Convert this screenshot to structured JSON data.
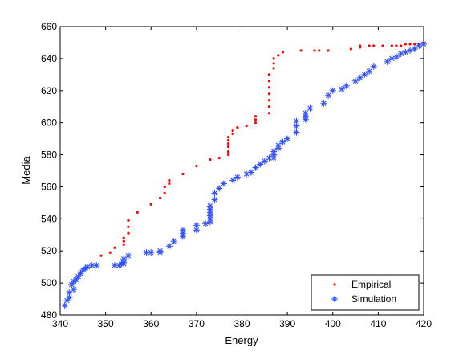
{
  "chart_data": {
    "type": "scatter",
    "xlabel": "Energy",
    "ylabel": "Media",
    "xlim": [
      340,
      420
    ],
    "ylim": [
      480,
      660
    ],
    "xticks": [
      340,
      350,
      360,
      370,
      380,
      390,
      400,
      410,
      420
    ],
    "yticks": [
      480,
      500,
      520,
      540,
      560,
      580,
      600,
      620,
      640,
      660
    ],
    "grid": false,
    "legend_position": "bottom-right",
    "series": [
      {
        "name": "Empirical",
        "color": "#ff0000",
        "marker": "dot",
        "points": [
          [
            349,
            517
          ],
          [
            351,
            519
          ],
          [
            352,
            522
          ],
          [
            354,
            524
          ],
          [
            354,
            526
          ],
          [
            354,
            528
          ],
          [
            355,
            531
          ],
          [
            355,
            535
          ],
          [
            355,
            539
          ],
          [
            357,
            544
          ],
          [
            360,
            549
          ],
          [
            362,
            553
          ],
          [
            363,
            556
          ],
          [
            363,
            560
          ],
          [
            364,
            562
          ],
          [
            364,
            564
          ],
          [
            367,
            568
          ],
          [
            370,
            573
          ],
          [
            373,
            577
          ],
          [
            375,
            578
          ],
          [
            377,
            580
          ],
          [
            377,
            582
          ],
          [
            377,
            585
          ],
          [
            377,
            587
          ],
          [
            377,
            589
          ],
          [
            377,
            591
          ],
          [
            378,
            593
          ],
          [
            378,
            595
          ],
          [
            379,
            597
          ],
          [
            381,
            598
          ],
          [
            383,
            600
          ],
          [
            383,
            602
          ],
          [
            383,
            604
          ],
          [
            386,
            606
          ],
          [
            386,
            610
          ],
          [
            386,
            614
          ],
          [
            386,
            618
          ],
          [
            386,
            622
          ],
          [
            386,
            626
          ],
          [
            386,
            630
          ],
          [
            387,
            634
          ],
          [
            387,
            637
          ],
          [
            387,
            640
          ],
          [
            388,
            642
          ],
          [
            389,
            644
          ],
          [
            393,
            645
          ],
          [
            396,
            645
          ],
          [
            397,
            645
          ],
          [
            399,
            645
          ],
          [
            404,
            646
          ],
          [
            406,
            647
          ],
          [
            406,
            648
          ],
          [
            408,
            648
          ],
          [
            409,
            648
          ],
          [
            411,
            648
          ],
          [
            413,
            648
          ],
          [
            414,
            648
          ],
          [
            415,
            648
          ],
          [
            416,
            649
          ],
          [
            417,
            649
          ],
          [
            418,
            649
          ],
          [
            419,
            649
          ],
          [
            420,
            650
          ]
        ]
      },
      {
        "name": "Simulation",
        "color": "#3050ff",
        "marker": "star",
        "points": [
          [
            341,
            486
          ],
          [
            341.5,
            489
          ],
          [
            342,
            491
          ],
          [
            342,
            494
          ],
          [
            343,
            496
          ],
          [
            342.5,
            499
          ],
          [
            343,
            501
          ],
          [
            343.5,
            502
          ],
          [
            344,
            504
          ],
          [
            344.5,
            506
          ],
          [
            345,
            508
          ],
          [
            346,
            510
          ],
          [
            345.5,
            509
          ],
          [
            347,
            511
          ],
          [
            348,
            511
          ],
          [
            352,
            511
          ],
          [
            353,
            511
          ],
          [
            353.5,
            512
          ],
          [
            354,
            512
          ],
          [
            354,
            513
          ],
          [
            354,
            515
          ],
          [
            355,
            517
          ],
          [
            359,
            519
          ],
          [
            360,
            519
          ],
          [
            362,
            519
          ],
          [
            362,
            520
          ],
          [
            364,
            523
          ],
          [
            365,
            526
          ],
          [
            367,
            529
          ],
          [
            367,
            531
          ],
          [
            367,
            533
          ],
          [
            370,
            533
          ],
          [
            370,
            536
          ],
          [
            372,
            537
          ],
          [
            373,
            538
          ],
          [
            373,
            540
          ],
          [
            373,
            542
          ],
          [
            373,
            544
          ],
          [
            373,
            546
          ],
          [
            373,
            548
          ],
          [
            374,
            552
          ],
          [
            374,
            556
          ],
          [
            375,
            559
          ],
          [
            376,
            562
          ],
          [
            378,
            564
          ],
          [
            379,
            566
          ],
          [
            381,
            568
          ],
          [
            382,
            569
          ],
          [
            383,
            572
          ],
          [
            384,
            574
          ],
          [
            385,
            576
          ],
          [
            386,
            578
          ],
          [
            387,
            578
          ],
          [
            387,
            580
          ],
          [
            387,
            582
          ],
          [
            388,
            584
          ],
          [
            388,
            586
          ],
          [
            389,
            588
          ],
          [
            390,
            590
          ],
          [
            392,
            594
          ],
          [
            392,
            598
          ],
          [
            392,
            601
          ],
          [
            394,
            602
          ],
          [
            394,
            604
          ],
          [
            394,
            606
          ],
          [
            395,
            609
          ],
          [
            398,
            612
          ],
          [
            399,
            617
          ],
          [
            400,
            620
          ],
          [
            402,
            621
          ],
          [
            403,
            623
          ],
          [
            405,
            626
          ],
          [
            406,
            628
          ],
          [
            407,
            630
          ],
          [
            408,
            632
          ],
          [
            409,
            635
          ],
          [
            412,
            638
          ],
          [
            413,
            640
          ],
          [
            414,
            641
          ],
          [
            415,
            643
          ],
          [
            416,
            644
          ],
          [
            417,
            645
          ],
          [
            418,
            646
          ],
          [
            419,
            648
          ],
          [
            420,
            649
          ]
        ]
      }
    ]
  }
}
